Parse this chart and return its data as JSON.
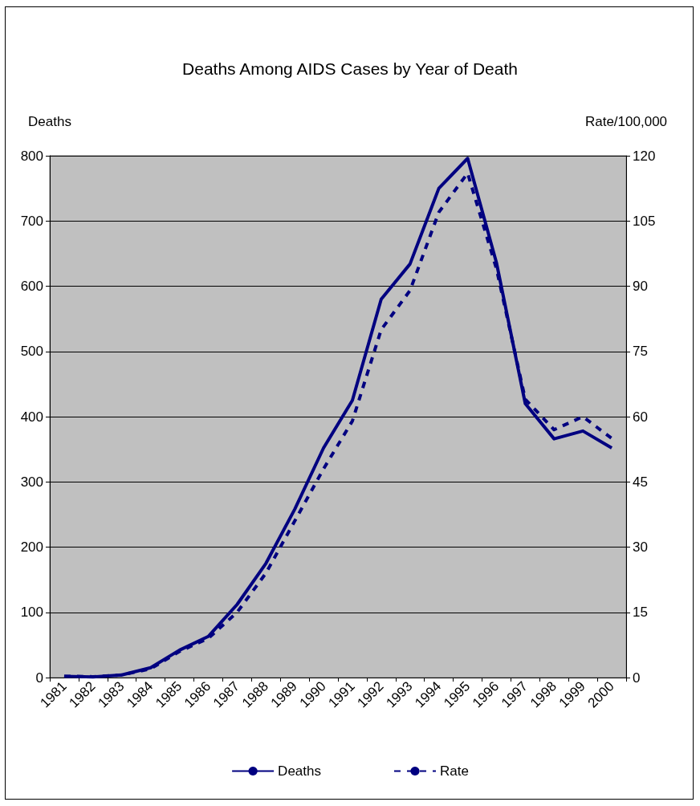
{
  "chart_data": {
    "type": "line",
    "title": "Deaths Among AIDS Cases by Year of Death",
    "ylabel": "Deaths",
    "y2label": "Rate/100,000",
    "categories": [
      "1981",
      "1982",
      "1983",
      "1984",
      "1985",
      "1986",
      "1987",
      "1988",
      "1989",
      "1990",
      "1991",
      "1992",
      "1993",
      "1994",
      "1995",
      "1996",
      "1997",
      "1998",
      "1999",
      "2000"
    ],
    "series": [
      {
        "name": "Deaths",
        "color": "#000080",
        "line_style": "solid",
        "values": [
          2,
          1,
          4,
          15,
          42,
          63,
          112,
          175,
          258,
          352,
          425,
          580,
          634,
          750,
          796,
          636,
          420,
          366,
          378,
          352
        ]
      },
      {
        "name": "Rate",
        "color": "#000080",
        "line_style": "dashed",
        "axis": "y2",
        "values": [
          0.3,
          0.2,
          0.6,
          2,
          6,
          9,
          15,
          24,
          36,
          48,
          59,
          80,
          89,
          107,
          116,
          94,
          64,
          57,
          60,
          55
        ]
      }
    ],
    "ylim": [
      0,
      800
    ],
    "yticks": [
      0,
      100,
      200,
      300,
      400,
      500,
      600,
      700,
      800
    ],
    "y2lim": [
      0,
      120
    ],
    "y2ticks": [
      0,
      15,
      30,
      45,
      60,
      75,
      90,
      105,
      120
    ],
    "grid": "y",
    "legend": "bottom",
    "marker": "none"
  }
}
